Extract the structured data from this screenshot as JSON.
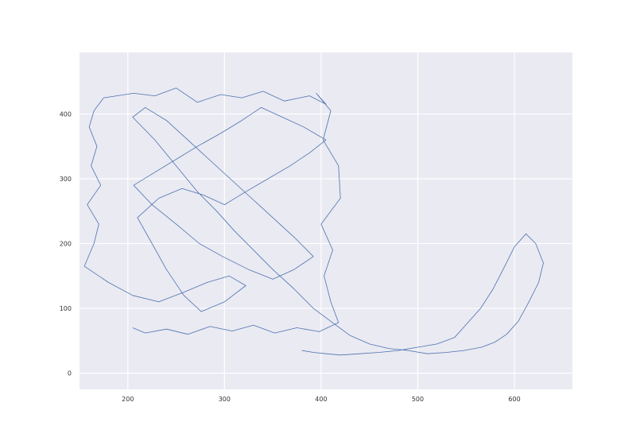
{
  "chart_data": {
    "type": "line",
    "title": "",
    "xlabel": "",
    "ylabel": "",
    "xlim": [
      150,
      660
    ],
    "ylim": [
      -25,
      495
    ],
    "grid": true,
    "x_ticks": [
      200,
      300,
      400,
      500,
      600
    ],
    "y_ticks": [
      0,
      100,
      200,
      300,
      400
    ],
    "series": [
      {
        "color": "#4c72b0",
        "x": [
          205,
          218,
          240,
          262,
          285,
          308,
          330,
          352,
          375,
          398,
          418,
          410,
          403,
          412,
          400,
          420,
          418,
          402,
          410,
          395,
          405,
          388,
          362,
          340,
          318,
          296,
          272,
          250,
          228,
          206,
          175,
          165,
          160,
          168,
          162,
          172,
          158,
          170,
          165,
          155,
          180,
          205,
          232,
          258,
          282,
          305,
          322,
          300,
          276,
          258,
          240,
          225,
          210,
          232,
          256,
          278,
          300,
          322,
          345,
          368,
          388,
          405,
          382,
          360,
          338,
          318,
          296,
          272,
          250,
          228,
          206,
          225,
          250,
          274,
          298,
          325,
          350,
          372,
          392,
          372,
          350,
          328,
          306,
          284,
          262,
          240,
          218,
          205,
          228,
          250,
          272,
          292,
          310,
          330,
          350,
          372,
          392,
          410,
          430,
          450,
          470,
          490,
          510,
          530,
          548,
          566,
          580,
          592,
          604,
          615,
          625,
          630,
          622,
          612,
          600,
          590,
          578,
          565,
          550,
          538,
          520,
          500,
          480,
          460,
          440,
          420,
          405,
          392,
          380
        ],
        "y": [
          70,
          62,
          68,
          60,
          72,
          65,
          74,
          62,
          70,
          64,
          78,
          110,
          150,
          190,
          230,
          270,
          320,
          360,
          405,
          432,
          415,
          428,
          420,
          435,
          425,
          430,
          418,
          440,
          428,
          432,
          425,
          405,
          380,
          350,
          320,
          290,
          260,
          230,
          200,
          165,
          140,
          120,
          110,
          125,
          140,
          150,
          135,
          110,
          95,
          120,
          160,
          200,
          240,
          270,
          285,
          275,
          260,
          280,
          300,
          320,
          340,
          360,
          380,
          395,
          410,
          390,
          370,
          350,
          330,
          310,
          290,
          260,
          230,
          200,
          180,
          160,
          145,
          160,
          180,
          210,
          240,
          270,
          300,
          330,
          360,
          390,
          410,
          395,
          360,
          320,
          280,
          250,
          220,
          190,
          160,
          130,
          100,
          80,
          58,
          45,
          38,
          35,
          30,
          32,
          35,
          40,
          48,
          60,
          80,
          110,
          140,
          170,
          200,
          215,
          195,
          165,
          130,
          100,
          75,
          55,
          45,
          40,
          35,
          32,
          30,
          28,
          30,
          32,
          35
        ]
      }
    ]
  }
}
